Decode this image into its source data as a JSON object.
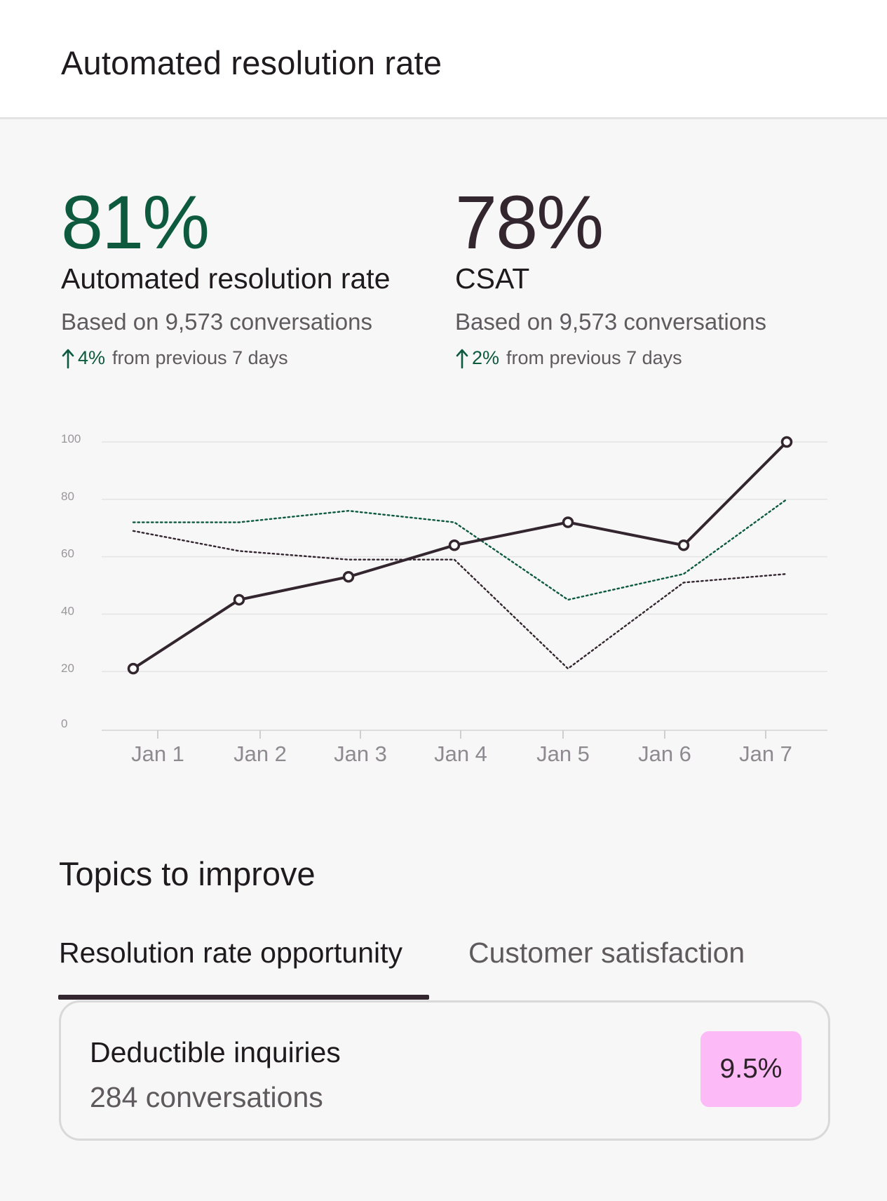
{
  "header": {
    "title": "Automated resolution rate"
  },
  "metrics": [
    {
      "value": "81%",
      "label": "Automated resolution rate",
      "sub": "Based on 9,573 conversations",
      "change": "4%",
      "change_text": "from previous 7 days",
      "color": "#0e5a3e"
    },
    {
      "value": "78%",
      "label": "CSAT",
      "sub": "Based on 9,573 conversations",
      "change": "2%",
      "change_text": "from previous 7 days",
      "color": "#33262f"
    }
  ],
  "chart_data": {
    "type": "line",
    "categories": [
      "Jan 1",
      "Jan 2",
      "Jan 3",
      "Jan 4",
      "Jan 5",
      "Jan 6",
      "Jan 7"
    ],
    "yticks": [
      0,
      20,
      40,
      60,
      80,
      100
    ],
    "ylim": [
      0,
      100
    ],
    "grid": true,
    "series": [
      {
        "values": [
          21,
          45,
          53,
          64,
          72,
          64,
          100
        ],
        "style": "solid",
        "color": "#33262f",
        "markers": true
      },
      {
        "values": [
          72,
          72,
          76,
          72,
          45,
          54,
          80
        ],
        "style": "dotted",
        "color": "#0e5a3e",
        "markers": false
      },
      {
        "values": [
          69,
          62,
          59,
          59,
          21,
          51,
          54
        ],
        "style": "dotted",
        "color": "#33262f",
        "markers": false
      }
    ]
  },
  "topics": {
    "title": "Topics to improve",
    "tabs": [
      {
        "label": "Resolution rate opportunity",
        "active": true
      },
      {
        "label": "Customer satisfaction",
        "active": false
      }
    ],
    "items": [
      {
        "name": "Deductible inquiries",
        "count": "284 conversations",
        "rate": "9.5%",
        "badge_color": "#fcbaf7"
      }
    ]
  }
}
